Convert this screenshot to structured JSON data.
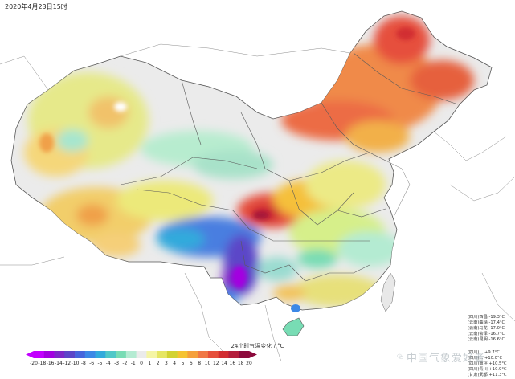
{
  "timestamp": "2020年4月23日15时",
  "legend": {
    "title": "24小时气温变化 / °C",
    "colors": [
      "#c300ff",
      "#a300e0",
      "#7d28c8",
      "#5c46c8",
      "#4665dc",
      "#3c88e6",
      "#32aadc",
      "#50c8c8",
      "#78dcb4",
      "#b4ebd2",
      "#ebebeb",
      "#f5f5a5",
      "#e6e664",
      "#d2d232",
      "#f5c332",
      "#f5a03c",
      "#f07846",
      "#e6503c",
      "#d22d32",
      "#b41e3c",
      "#8c0a3c"
    ],
    "ticks": [
      "-20",
      "-18",
      "-16",
      "-14",
      "-12",
      "-10",
      "-8",
      "-6",
      "-5",
      "-4",
      "-3",
      "-2",
      "-1",
      "0",
      "1",
      "2",
      "3",
      "4",
      "5",
      "6",
      "8",
      "10",
      "12",
      "14",
      "16",
      "18",
      "20"
    ]
  },
  "cooling_stations": [
    "(四川)西昌 -19.3°C",
    "(云南)曲靖 -17.4°C",
    "(云南)马龙 -17.0°C",
    "(云南)会泽 -16.7°C",
    "(云南)昆明 -16.6°C"
  ],
  "warming_stations": [
    "(四川)...  +9.7°C",
    "(四川)...  +10.0°C",
    "(四川)南坪 +10.5°C",
    "(四川)青川 +10.9°C",
    "(甘肃)武都 +11.3°C"
  ],
  "watermark": {
    "text": "中国气象爱好者",
    "icon": "wechat-icon"
  }
}
